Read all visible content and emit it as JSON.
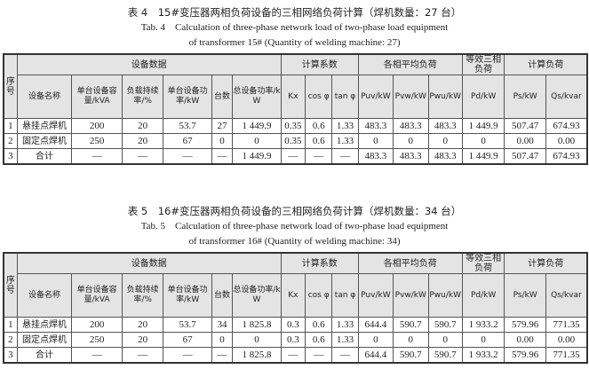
{
  "header_colors": {
    "header_bg": "#e4e4e4",
    "border": "#555555"
  },
  "tables": [
    {
      "title_cn": "表 4　15#变压器两相负荷设备的三相网络负荷计算（焊机数量：27 台）",
      "title_en_1": "Tab. 4　Calculation of three-phase network load of two-phase load equipment",
      "title_en_2": "of transformer 15# (Quantity of welding machine: 27)",
      "group_headers": [
        "序号",
        "设备数据",
        "计算系数",
        "各相平均负荷",
        "等效三相负荷",
        "计算负荷"
      ],
      "col_headers": [
        "设备名称",
        "单台设备容量/kVA",
        "负载持续率/%",
        "单台设备功率/kW",
        "台数",
        "总设备功率/kW",
        "Kx",
        "cos φ",
        "tan φ",
        "Puv/kW",
        "Pvw/kW",
        "Pwu/kW",
        "Pd/kW",
        "Ps/kW",
        "Qs/kvar"
      ],
      "rows": [
        [
          "1",
          "悬挂点焊机",
          "200",
          "20",
          "53.7",
          "27",
          "1 449.9",
          "0.35",
          "0.6",
          "1.33",
          "483.3",
          "483.3",
          "483.3",
          "1 449.9",
          "507.47",
          "674.93"
        ],
        [
          "2",
          "固定点焊机",
          "250",
          "20",
          "67",
          "0",
          "0",
          "0.35",
          "0.6",
          "1.33",
          "0",
          "0",
          "0",
          "0",
          "0.00",
          "0.00"
        ],
        [
          "3",
          "合计",
          "—",
          "—",
          "—",
          "—",
          "1 449.9",
          "—",
          "—",
          "—",
          "483.3",
          "483.3",
          "483.3",
          "1 449.9",
          "507.47",
          "674.93"
        ]
      ]
    },
    {
      "title_cn": "表 5　16#变压器两相负荷设备的三相网络负荷计算（焊机数量：34 台）",
      "title_en_1": "Tab. 5　Calculation of three-phase network load of two-phase load equipment",
      "title_en_2": "of transformer 16# (Quantity of welding machine: 34)",
      "group_headers": [
        "序号",
        "设备数据",
        "计算系数",
        "各相平均负荷",
        "等效三相负荷",
        "计算负荷"
      ],
      "col_headers": [
        "设备名称",
        "单台设备容量/kVA",
        "负载持续率/%",
        "单台设备功率/kW",
        "台数",
        "总设备功率/kW",
        "Kx",
        "cos φ",
        "tan φ",
        "Puv/kW",
        "Pvw/kW",
        "Pwu/kW",
        "Pd/kW",
        "Ps/kW",
        "Qs/kvar"
      ],
      "rows": [
        [
          "1",
          "悬挂点焊机",
          "200",
          "20",
          "53.7",
          "34",
          "1 825.8",
          "0.3",
          "0.6",
          "1.33",
          "644.4",
          "590.7",
          "590.7",
          "1 933.2",
          "579.96",
          "771.35"
        ],
        [
          "2",
          "固定点焊机",
          "250",
          "20",
          "67",
          "0",
          "0",
          "0.3",
          "0.6",
          "1.33",
          "0",
          "0",
          "0",
          "0",
          "0.00",
          "0.00"
        ],
        [
          "3",
          "合计",
          "—",
          "—",
          "—",
          "—",
          "1 825.8",
          "—",
          "—",
          "—",
          "644.4",
          "590.7",
          "590.7",
          "1 933.2",
          "579.96",
          "771.35"
        ]
      ]
    }
  ]
}
